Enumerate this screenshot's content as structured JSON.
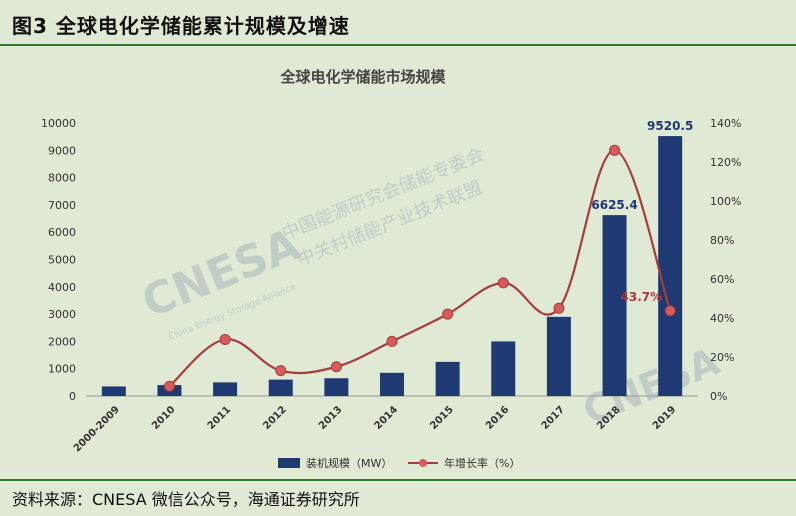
{
  "figure_title": "图3  全球电化学储能累计规模及增速",
  "source": "资料来源：CNESA 微信公众号，海通证券研究所",
  "watermark": {
    "logo": "CNESA",
    "line1": "中国能源研究会储能专委会",
    "line2": "中关村储能产业技术联盟",
    "tagline": "China Energy Storage Alliance"
  },
  "colors": {
    "bar": "#1f3a72",
    "line": "#a83c3c",
    "marker": "#d85a5a",
    "background": "#dfe9d3"
  },
  "chart_data": {
    "type": "bar+line",
    "title": "全球电化学储能市场规模",
    "categories": [
      "2000-2009",
      "2010",
      "2011",
      "2012",
      "2013",
      "2014",
      "2015",
      "2016",
      "2017",
      "2018",
      "2019"
    ],
    "series": [
      {
        "name": "装机规模（MW）",
        "type": "bar",
        "axis": "left",
        "values": [
          350,
          400,
          500,
          600,
          650,
          850,
          1250,
          2000,
          2900,
          6625.4,
          9520.5
        ]
      },
      {
        "name": "年增长率（%）",
        "type": "line",
        "axis": "right",
        "values": [
          null,
          5,
          29,
          13,
          15,
          28,
          42,
          58,
          45,
          126,
          43.7
        ]
      }
    ],
    "data_labels": [
      {
        "category": "2018",
        "text": "6625.4"
      },
      {
        "category": "2019",
        "text": "9520.5"
      },
      {
        "category": "2019",
        "text": "43.7%"
      }
    ],
    "left_axis": {
      "min": 0,
      "max": 10000,
      "ticks": [
        "0",
        "1000",
        "2000",
        "3000",
        "4000",
        "5000",
        "6000",
        "7000",
        "8000",
        "9000",
        "10000"
      ]
    },
    "right_axis": {
      "min": 0,
      "max": 140,
      "ticks": [
        "0%",
        "20%",
        "40%",
        "60%",
        "80%",
        "100%",
        "120%",
        "140%"
      ]
    },
    "legend_position": "bottom",
    "grid": false
  }
}
